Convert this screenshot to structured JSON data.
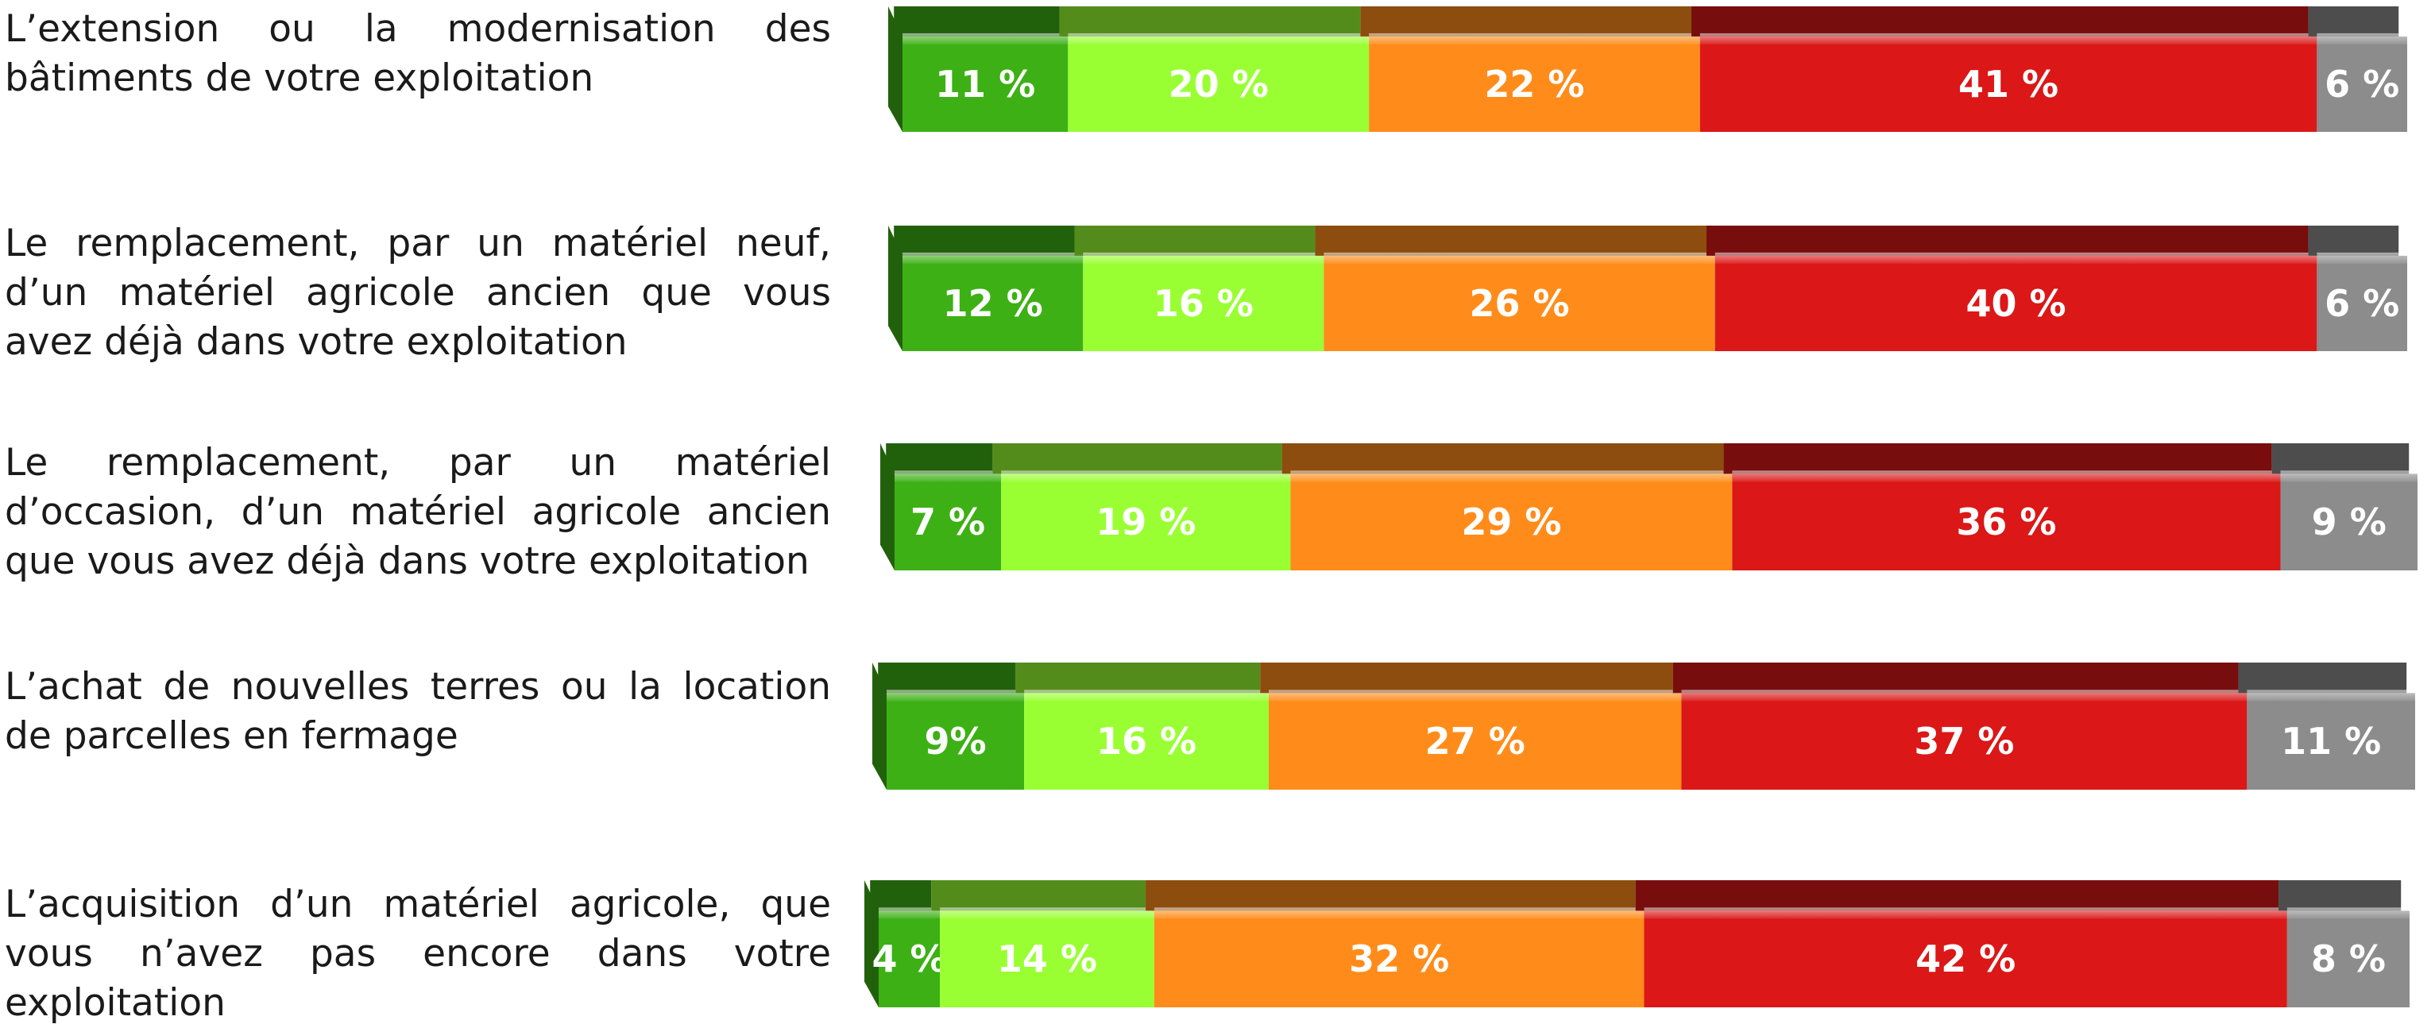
{
  "chart_data": {
    "type": "bar",
    "orientation": "horizontal",
    "stacked": true,
    "normalized": true,
    "title": "",
    "xlabel": "",
    "ylabel": "",
    "grid": false,
    "legend": "none",
    "categories": [
      "L’extension ou la modernisation des bâtiments de votre exploitation",
      "Le remplacement, par un matériel neuf, d’un matériel agricole ancien que vous avez déjà dans votre exploitation",
      "Le remplacement, par un matériel d’occasion, d’un matériel agricole ancien que vous avez déjà dans votre exploitation",
      "L’achat de nouvelles terres ou la location de parcelles en fermage",
      "L’acquisition d’un matériel agricole, que vous n’avez pas encore dans votre exploitation"
    ],
    "series": [
      {
        "color": "#3db015",
        "values": [
          11,
          12,
          7,
          9,
          4
        ]
      },
      {
        "color": "#99ff33",
        "values": [
          20,
          16,
          19,
          16,
          14
        ]
      },
      {
        "color": "#ff8c1a",
        "values": [
          22,
          26,
          29,
          27,
          32
        ]
      },
      {
        "color": "#db1717",
        "values": [
          41,
          40,
          36,
          37,
          42
        ]
      },
      {
        "color": "#8c8c8c",
        "values": [
          6,
          6,
          9,
          11,
          8
        ]
      }
    ],
    "value_labels": [
      [
        "11 %",
        "20 %",
        "22 %",
        "41 %",
        "6 %"
      ],
      [
        "12 %",
        "16 %",
        "26 %",
        "40 %",
        "6 %"
      ],
      [
        "7 %",
        "19 %",
        "29 %",
        "36 %",
        "9 %"
      ],
      [
        "9%",
        "16 %",
        "27 %",
        "37 %",
        "11 %"
      ],
      [
        "4 %",
        "14 %",
        "32 %",
        "42 %",
        "8 %"
      ]
    ]
  }
}
